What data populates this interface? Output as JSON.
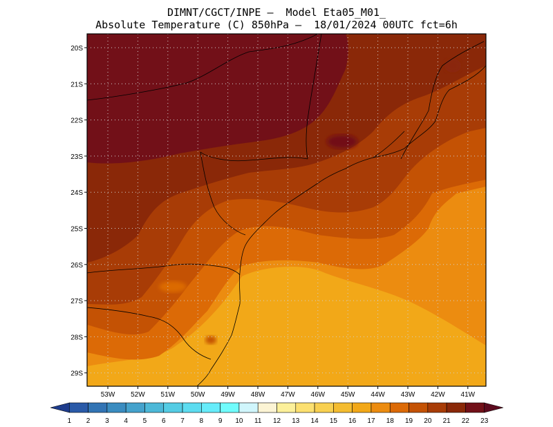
{
  "header": {
    "line1": "DIMNT/CGCT/INPE –  Model Eta05_M01_",
    "line2": "Absolute Temperature (C) 850hPa –  18/01/2024 00UTC fct=6h"
  },
  "map": {
    "lat_labels": [
      "20S",
      "21S",
      "22S",
      "23S",
      "24S",
      "25S",
      "26S",
      "27S",
      "28S",
      "29S"
    ],
    "lon_labels": [
      "53W",
      "52W",
      "51W",
      "50W",
      "49W",
      "48W",
      "47W",
      "46W",
      "45W",
      "44W",
      "43W",
      "42W",
      "41W"
    ],
    "grid": "dotted",
    "field": "temperature"
  },
  "colorbar": {
    "labels": [
      "1",
      "2",
      "3",
      "4",
      "5",
      "6",
      "7",
      "8",
      "9",
      "10",
      "11",
      "12",
      "13",
      "14",
      "15",
      "16",
      "17",
      "18",
      "19",
      "20",
      "21",
      "22",
      "23"
    ],
    "colors": [
      "#1e3c8c",
      "#2a5aa8",
      "#3274b4",
      "#3a8cc0",
      "#44a2cc",
      "#4cb8d8",
      "#54cce4",
      "#5cdcf0",
      "#66ecfa",
      "#70fcfc",
      "#d0f6fc",
      "#fcf4d4",
      "#fcf09a",
      "#fce070",
      "#f8d050",
      "#f4bc30",
      "#f2a818",
      "#ec8c10",
      "#dc6a06",
      "#c45204",
      "#a83c06",
      "#8a2808",
      "#721018",
      "#5c0a1e"
    ]
  }
}
